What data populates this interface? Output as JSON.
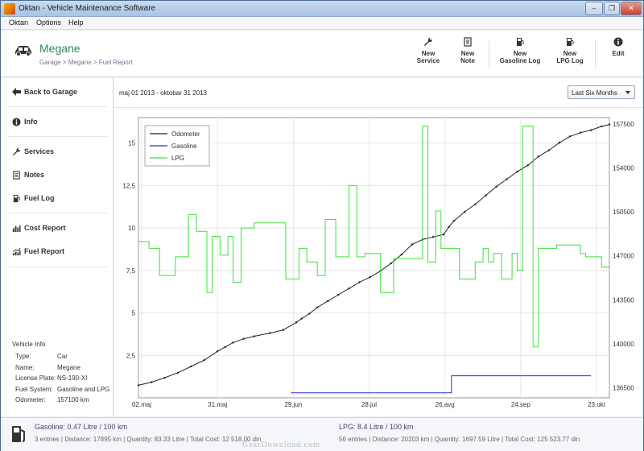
{
  "window": {
    "title": "Oktan - Vehicle Maintenance Software",
    "controls": [
      "–",
      "❐",
      "✕"
    ]
  },
  "menu": [
    "Oktan",
    "Options",
    "Help"
  ],
  "header": {
    "vehicle_name": "Megane",
    "breadcrumb": "Garage > Megane > Fuel Report",
    "toolbar": [
      {
        "line1": "New",
        "line2": "Service",
        "icon": "wrench-icon"
      },
      {
        "line1": "New",
        "line2": "Note",
        "icon": "note-icon"
      },
      {
        "line1": "New",
        "line2": "Gasoline Log",
        "icon": "fuel-pump-icon"
      },
      {
        "line1": "New",
        "line2": "LPG Log",
        "icon": "fuel-pump-icon"
      },
      {
        "line1": "Edit",
        "line2": "",
        "icon": "info-icon"
      }
    ]
  },
  "sidebar": {
    "items": [
      {
        "label": "Back to Garage",
        "icon": "arrow-left-icon"
      },
      {
        "label": "Info",
        "icon": "info-icon"
      },
      {
        "label": "Services",
        "icon": "wrench-icon"
      },
      {
        "label": "Notes",
        "icon": "note-icon"
      },
      {
        "label": "Fuel Log",
        "icon": "fuel-pump-icon"
      },
      {
        "label": "Cost Report",
        "icon": "bar-chart-icon"
      },
      {
        "label": "Fuel Report",
        "icon": "line-chart-icon"
      }
    ],
    "vehicle_info": {
      "title": "Vehicle Info",
      "rows": [
        {
          "key": "Type:",
          "value": "Car"
        },
        {
          "key": "Name:",
          "value": "Megane"
        },
        {
          "key": "License Plate:",
          "value": "NS-190-XI"
        },
        {
          "key": "Fuel System:",
          "value": "Gasoline and LPG"
        },
        {
          "key": "Odometer:",
          "value": "157100 km"
        }
      ]
    }
  },
  "main": {
    "date_range": "maj 01 2013 - oktobar 31 2013",
    "period_select": {
      "selected": "Last Six Months"
    }
  },
  "chart_data": {
    "type": "line",
    "x_ticks": [
      "02.maj",
      "31.maj",
      "29.jun",
      "28.jul",
      "26.avg",
      "24.sep",
      "23.okt"
    ],
    "x_range": [
      0,
      179
    ],
    "y_left_ticks": [
      "2,5",
      "5",
      "7,5",
      "10",
      "12,5",
      "15"
    ],
    "y_left_range": [
      0,
      16.5
    ],
    "y_right_ticks": [
      "136500",
      "140000",
      "143500",
      "147000",
      "150500",
      "154000",
      "157500"
    ],
    "y_right_range": [
      135700,
      158000
    ],
    "legend": {
      "position": "top-left"
    },
    "grid": true,
    "colors": {
      "Odometer": "#222222",
      "Gasoline": "#2a2ad6",
      "LPG": "#3ee03e"
    },
    "series": [
      {
        "name": "Odometer",
        "axis": "right",
        "x": [
          0,
          5,
          10,
          15,
          20,
          25,
          30,
          33,
          36,
          40,
          44,
          50,
          55,
          60,
          62,
          65,
          68,
          72,
          76,
          80,
          84,
          88,
          92,
          96,
          100,
          104,
          108,
          112,
          116,
          118,
          120,
          124,
          128,
          132,
          136,
          140,
          144,
          148,
          152,
          156,
          160,
          164,
          168,
          172,
          176,
          179
        ],
        "y": [
          136700,
          136950,
          137300,
          137700,
          138200,
          138700,
          139400,
          139750,
          140100,
          140400,
          140600,
          140850,
          141100,
          141700,
          142000,
          142400,
          142900,
          143400,
          143900,
          144400,
          144900,
          145300,
          145800,
          146400,
          147100,
          147900,
          148300,
          148500,
          148700,
          149300,
          149800,
          150500,
          151100,
          151800,
          152500,
          153100,
          153700,
          154200,
          154900,
          155400,
          156000,
          156500,
          156800,
          157000,
          157300,
          157450
        ]
      },
      {
        "name": "Gasoline",
        "axis": "left",
        "step": true,
        "x": [
          58,
          119,
          119,
          172
        ],
        "y": [
          0.3,
          0.3,
          1.3,
          1.3
        ]
      },
      {
        "name": "LPG",
        "axis": "left",
        "step": true,
        "x": [
          0,
          4,
          8,
          14,
          19,
          22,
          26,
          28,
          31,
          34,
          36,
          39,
          44,
          56,
          61,
          64,
          68,
          71,
          75,
          80,
          83,
          86,
          90,
          92,
          97,
          108,
          110,
          113,
          115,
          117,
          119,
          122,
          128,
          131,
          133,
          135,
          138,
          142,
          144,
          146,
          150,
          152,
          159,
          168,
          170,
          173,
          176,
          179
        ],
        "y": [
          9.2,
          8.8,
          7.2,
          8.3,
          10.8,
          9.8,
          6.2,
          9.5,
          8.4,
          9.5,
          6.8,
          10.0,
          10.3,
          7.0,
          8.8,
          8.0,
          7.2,
          10.5,
          8.3,
          12.5,
          8.3,
          8.5,
          8.5,
          6.2,
          8.2,
          16.0,
          8.0,
          11.0,
          8.8,
          8.8,
          8.8,
          7.0,
          8.0,
          8.8,
          8.0,
          8.5,
          7.0,
          8.5,
          7.5,
          16.0,
          3.0,
          8.8,
          9.0,
          8.5,
          8.3,
          8.3,
          7.7,
          7.7
        ]
      }
    ]
  },
  "footer": {
    "gasoline_title": "Gasoline: 0.47 Litre / 100 km",
    "gasoline_detail": "3 entries | Distance: 17895 km | Quantity: 83.33 Litre | Total Cost: 12 518.00 din",
    "lpg_title": "LPG: 8.4 Litre / 100 km",
    "lpg_detail": "56 entries | Distance: 20203 km | Quantity: 1697.59 Litre | Total Cost: 125 523.77 din",
    "watermark": "GearDownload.com"
  }
}
